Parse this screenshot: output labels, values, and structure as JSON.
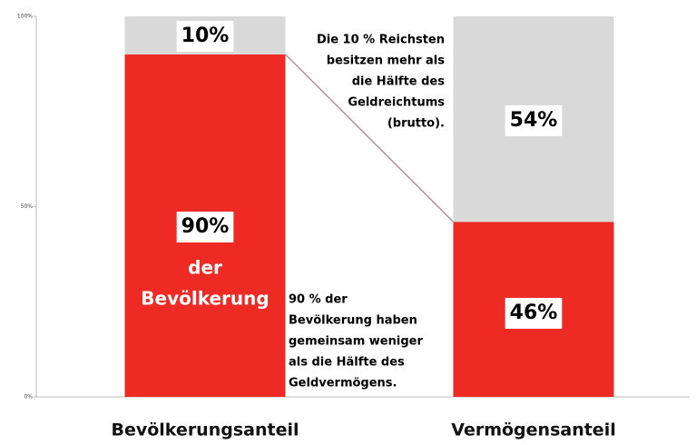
{
  "chart_data": {
    "type": "stacked_bar",
    "categories": [
      "Bevölkerungsanteil",
      "Vermögensanteil"
    ],
    "series": [
      {
        "color": "#ee2a24",
        "values": [
          90,
          46
        ],
        "value_labels": [
          "90%",
          "46%"
        ]
      },
      {
        "color": "#d9d9d9",
        "values": [
          10,
          54
        ],
        "value_labels": [
          "10%",
          "54%"
        ]
      }
    ],
    "ylim": [
      0,
      100
    ],
    "yticks": [
      {
        "value": 0,
        "label": "0%"
      },
      {
        "value": 50,
        "label": "50%"
      },
      {
        "value": 100,
        "label": "100%"
      }
    ],
    "annotations": [
      [
        "Die 10 % Reichsten",
        "besitzen mehr als",
        "die Hälfte des",
        "Geldreichtums",
        "(brutto)."
      ],
      [
        "90 % der",
        "Bevölkerung haben",
        "gemeinsam weniger",
        "als die Hälfte des",
        "Geldvermögens."
      ],
      [
        "der",
        "Bevölkerung"
      ]
    ]
  }
}
